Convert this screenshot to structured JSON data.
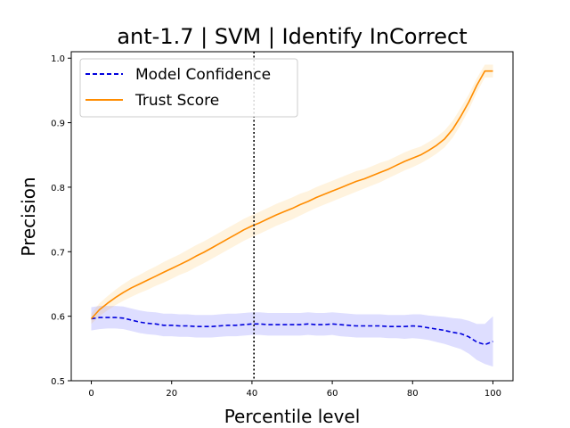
{
  "chart_data": {
    "type": "line",
    "title": "ant-1.7 | SVM | Identify InCorrect",
    "xlabel": "Percentile level",
    "ylabel": "Precision",
    "xlim": [
      -5,
      105
    ],
    "ylim": [
      0.5,
      1.01
    ],
    "xticks": [
      0,
      20,
      40,
      60,
      80,
      100
    ],
    "yticks": [
      0.5,
      0.6,
      0.7,
      0.8,
      0.9,
      1.0
    ],
    "xtick_labels": [
      "0",
      "20",
      "40",
      "60",
      "80",
      "100"
    ],
    "ytick_labels": [
      "0.5",
      "0.6",
      "0.7",
      "0.8",
      "0.9",
      "1.0"
    ],
    "grid": false,
    "legend_position": "top-left",
    "vline": {
      "x": 40.5,
      "style": "dotted",
      "color": "#000000"
    },
    "series": [
      {
        "name": "Model Confidence",
        "color": "#0000dd",
        "band_color": "#0000ff",
        "line_style": "dashed",
        "x": [
          0,
          2,
          4,
          6,
          8,
          10,
          12,
          14,
          16,
          18,
          20,
          22,
          24,
          26,
          28,
          30,
          32,
          34,
          36,
          38,
          40,
          42,
          44,
          46,
          48,
          50,
          52,
          54,
          56,
          58,
          60,
          62,
          64,
          66,
          68,
          70,
          72,
          74,
          76,
          78,
          80,
          82,
          84,
          86,
          88,
          90,
          92,
          94,
          96,
          98,
          100
        ],
        "y": [
          0.596,
          0.598,
          0.598,
          0.598,
          0.597,
          0.594,
          0.591,
          0.589,
          0.588,
          0.586,
          0.586,
          0.585,
          0.585,
          0.584,
          0.584,
          0.584,
          0.585,
          0.586,
          0.586,
          0.587,
          0.588,
          0.588,
          0.587,
          0.587,
          0.587,
          0.587,
          0.587,
          0.588,
          0.587,
          0.587,
          0.588,
          0.587,
          0.586,
          0.585,
          0.585,
          0.585,
          0.585,
          0.584,
          0.584,
          0.584,
          0.585,
          0.584,
          0.582,
          0.58,
          0.578,
          0.575,
          0.573,
          0.568,
          0.56,
          0.556,
          0.561
        ],
        "lower": [
          0.578,
          0.58,
          0.581,
          0.581,
          0.58,
          0.577,
          0.574,
          0.572,
          0.571,
          0.569,
          0.569,
          0.568,
          0.568,
          0.567,
          0.567,
          0.567,
          0.568,
          0.569,
          0.569,
          0.57,
          0.571,
          0.571,
          0.57,
          0.57,
          0.57,
          0.57,
          0.57,
          0.571,
          0.57,
          0.57,
          0.571,
          0.569,
          0.568,
          0.567,
          0.567,
          0.567,
          0.567,
          0.566,
          0.566,
          0.565,
          0.566,
          0.565,
          0.563,
          0.56,
          0.557,
          0.553,
          0.549,
          0.542,
          0.532,
          0.526,
          0.522
        ],
        "upper": [
          0.614,
          0.616,
          0.616,
          0.616,
          0.615,
          0.612,
          0.609,
          0.607,
          0.606,
          0.604,
          0.604,
          0.603,
          0.603,
          0.602,
          0.602,
          0.602,
          0.603,
          0.604,
          0.604,
          0.605,
          0.606,
          0.606,
          0.605,
          0.605,
          0.605,
          0.605,
          0.605,
          0.606,
          0.605,
          0.605,
          0.606,
          0.605,
          0.604,
          0.603,
          0.603,
          0.603,
          0.603,
          0.602,
          0.602,
          0.602,
          0.603,
          0.603,
          0.601,
          0.6,
          0.599,
          0.597,
          0.596,
          0.593,
          0.588,
          0.588,
          0.6
        ]
      },
      {
        "name": "Trust Score",
        "color": "#ff8c00",
        "band_color": "#ffa500",
        "line_style": "solid",
        "x": [
          0,
          2,
          4,
          6,
          8,
          10,
          12,
          14,
          16,
          18,
          20,
          22,
          24,
          26,
          28,
          30,
          32,
          34,
          36,
          38,
          40,
          42,
          44,
          46,
          48,
          50,
          52,
          54,
          56,
          58,
          60,
          62,
          64,
          66,
          68,
          70,
          72,
          74,
          76,
          78,
          80,
          82,
          84,
          86,
          88,
          90,
          92,
          94,
          96,
          98,
          100
        ],
        "y": [
          0.596,
          0.61,
          0.62,
          0.629,
          0.637,
          0.644,
          0.65,
          0.656,
          0.662,
          0.668,
          0.674,
          0.68,
          0.686,
          0.693,
          0.699,
          0.706,
          0.713,
          0.72,
          0.727,
          0.734,
          0.74,
          0.745,
          0.751,
          0.757,
          0.762,
          0.767,
          0.773,
          0.778,
          0.784,
          0.789,
          0.794,
          0.799,
          0.804,
          0.809,
          0.813,
          0.818,
          0.823,
          0.828,
          0.834,
          0.84,
          0.845,
          0.85,
          0.857,
          0.865,
          0.875,
          0.89,
          0.91,
          0.932,
          0.958,
          0.98,
          0.98
        ],
        "lower": [
          0.588,
          0.6,
          0.609,
          0.617,
          0.624,
          0.63,
          0.636,
          0.641,
          0.647,
          0.652,
          0.658,
          0.664,
          0.669,
          0.676,
          0.682,
          0.689,
          0.696,
          0.703,
          0.71,
          0.717,
          0.723,
          0.728,
          0.734,
          0.74,
          0.745,
          0.75,
          0.756,
          0.762,
          0.768,
          0.773,
          0.778,
          0.783,
          0.788,
          0.793,
          0.798,
          0.803,
          0.808,
          0.814,
          0.82,
          0.826,
          0.831,
          0.837,
          0.844,
          0.852,
          0.862,
          0.877,
          0.897,
          0.92,
          0.947,
          0.97,
          0.97
        ],
        "upper": [
          0.604,
          0.62,
          0.631,
          0.641,
          0.65,
          0.658,
          0.664,
          0.671,
          0.677,
          0.684,
          0.69,
          0.696,
          0.703,
          0.71,
          0.716,
          0.723,
          0.73,
          0.737,
          0.744,
          0.751,
          0.757,
          0.762,
          0.768,
          0.774,
          0.779,
          0.784,
          0.79,
          0.794,
          0.8,
          0.805,
          0.81,
          0.815,
          0.82,
          0.825,
          0.828,
          0.833,
          0.838,
          0.842,
          0.848,
          0.854,
          0.859,
          0.863,
          0.87,
          0.878,
          0.888,
          0.903,
          0.923,
          0.944,
          0.969,
          0.99,
          0.99
        ]
      }
    ]
  }
}
